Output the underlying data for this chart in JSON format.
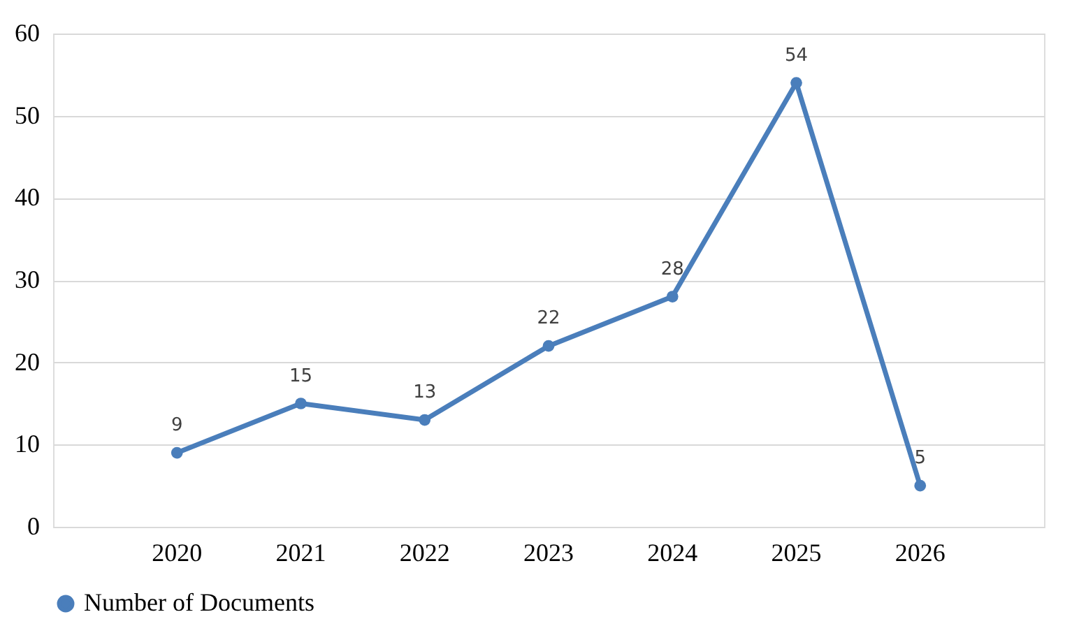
{
  "chart_data": {
    "type": "line",
    "categories": [
      "2020",
      "2021",
      "2022",
      "2023",
      "2024",
      "2025",
      "2026"
    ],
    "series": [
      {
        "name": "Number of Documents",
        "color": "#4a7ebb",
        "values": [
          9,
          15,
          13,
          22,
          28,
          54,
          5
        ]
      }
    ],
    "ylim": [
      0,
      60
    ],
    "yticks": [
      0,
      10,
      20,
      30,
      40,
      50,
      60
    ],
    "grid": "y",
    "legend": "bottom",
    "marker": "circle",
    "line_style": "solid",
    "data_labels": true
  }
}
